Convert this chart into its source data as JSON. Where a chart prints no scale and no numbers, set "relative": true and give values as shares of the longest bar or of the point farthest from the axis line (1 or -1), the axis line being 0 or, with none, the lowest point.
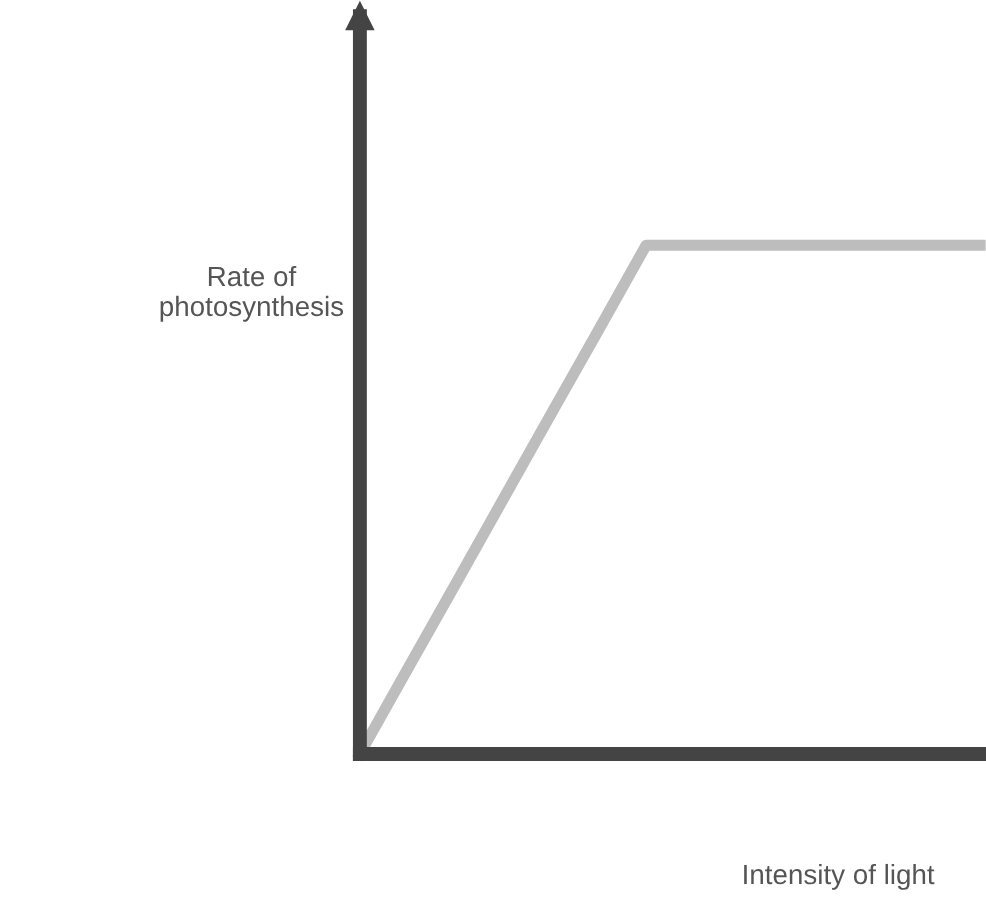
{
  "chart_data": {
    "type": "line",
    "relative": true,
    "xlabel": "Intensity of light",
    "ylabel": "Rate of\nphotosynthesis",
    "categories": [
      null,
      null,
      null,
      null,
      null,
      null,
      null,
      null,
      null,
      null,
      null,
      null,
      null,
      null
    ],
    "series": [
      {
        "color": "#bdbdbd",
        "values": [
          0,
          0.167,
          0.333,
          0.5,
          0.667,
          0.833,
          1,
          1,
          1,
          1,
          1,
          1,
          1,
          1
        ]
      }
    ],
    "marker": "none",
    "line_style": "solid",
    "legend": false
  }
}
